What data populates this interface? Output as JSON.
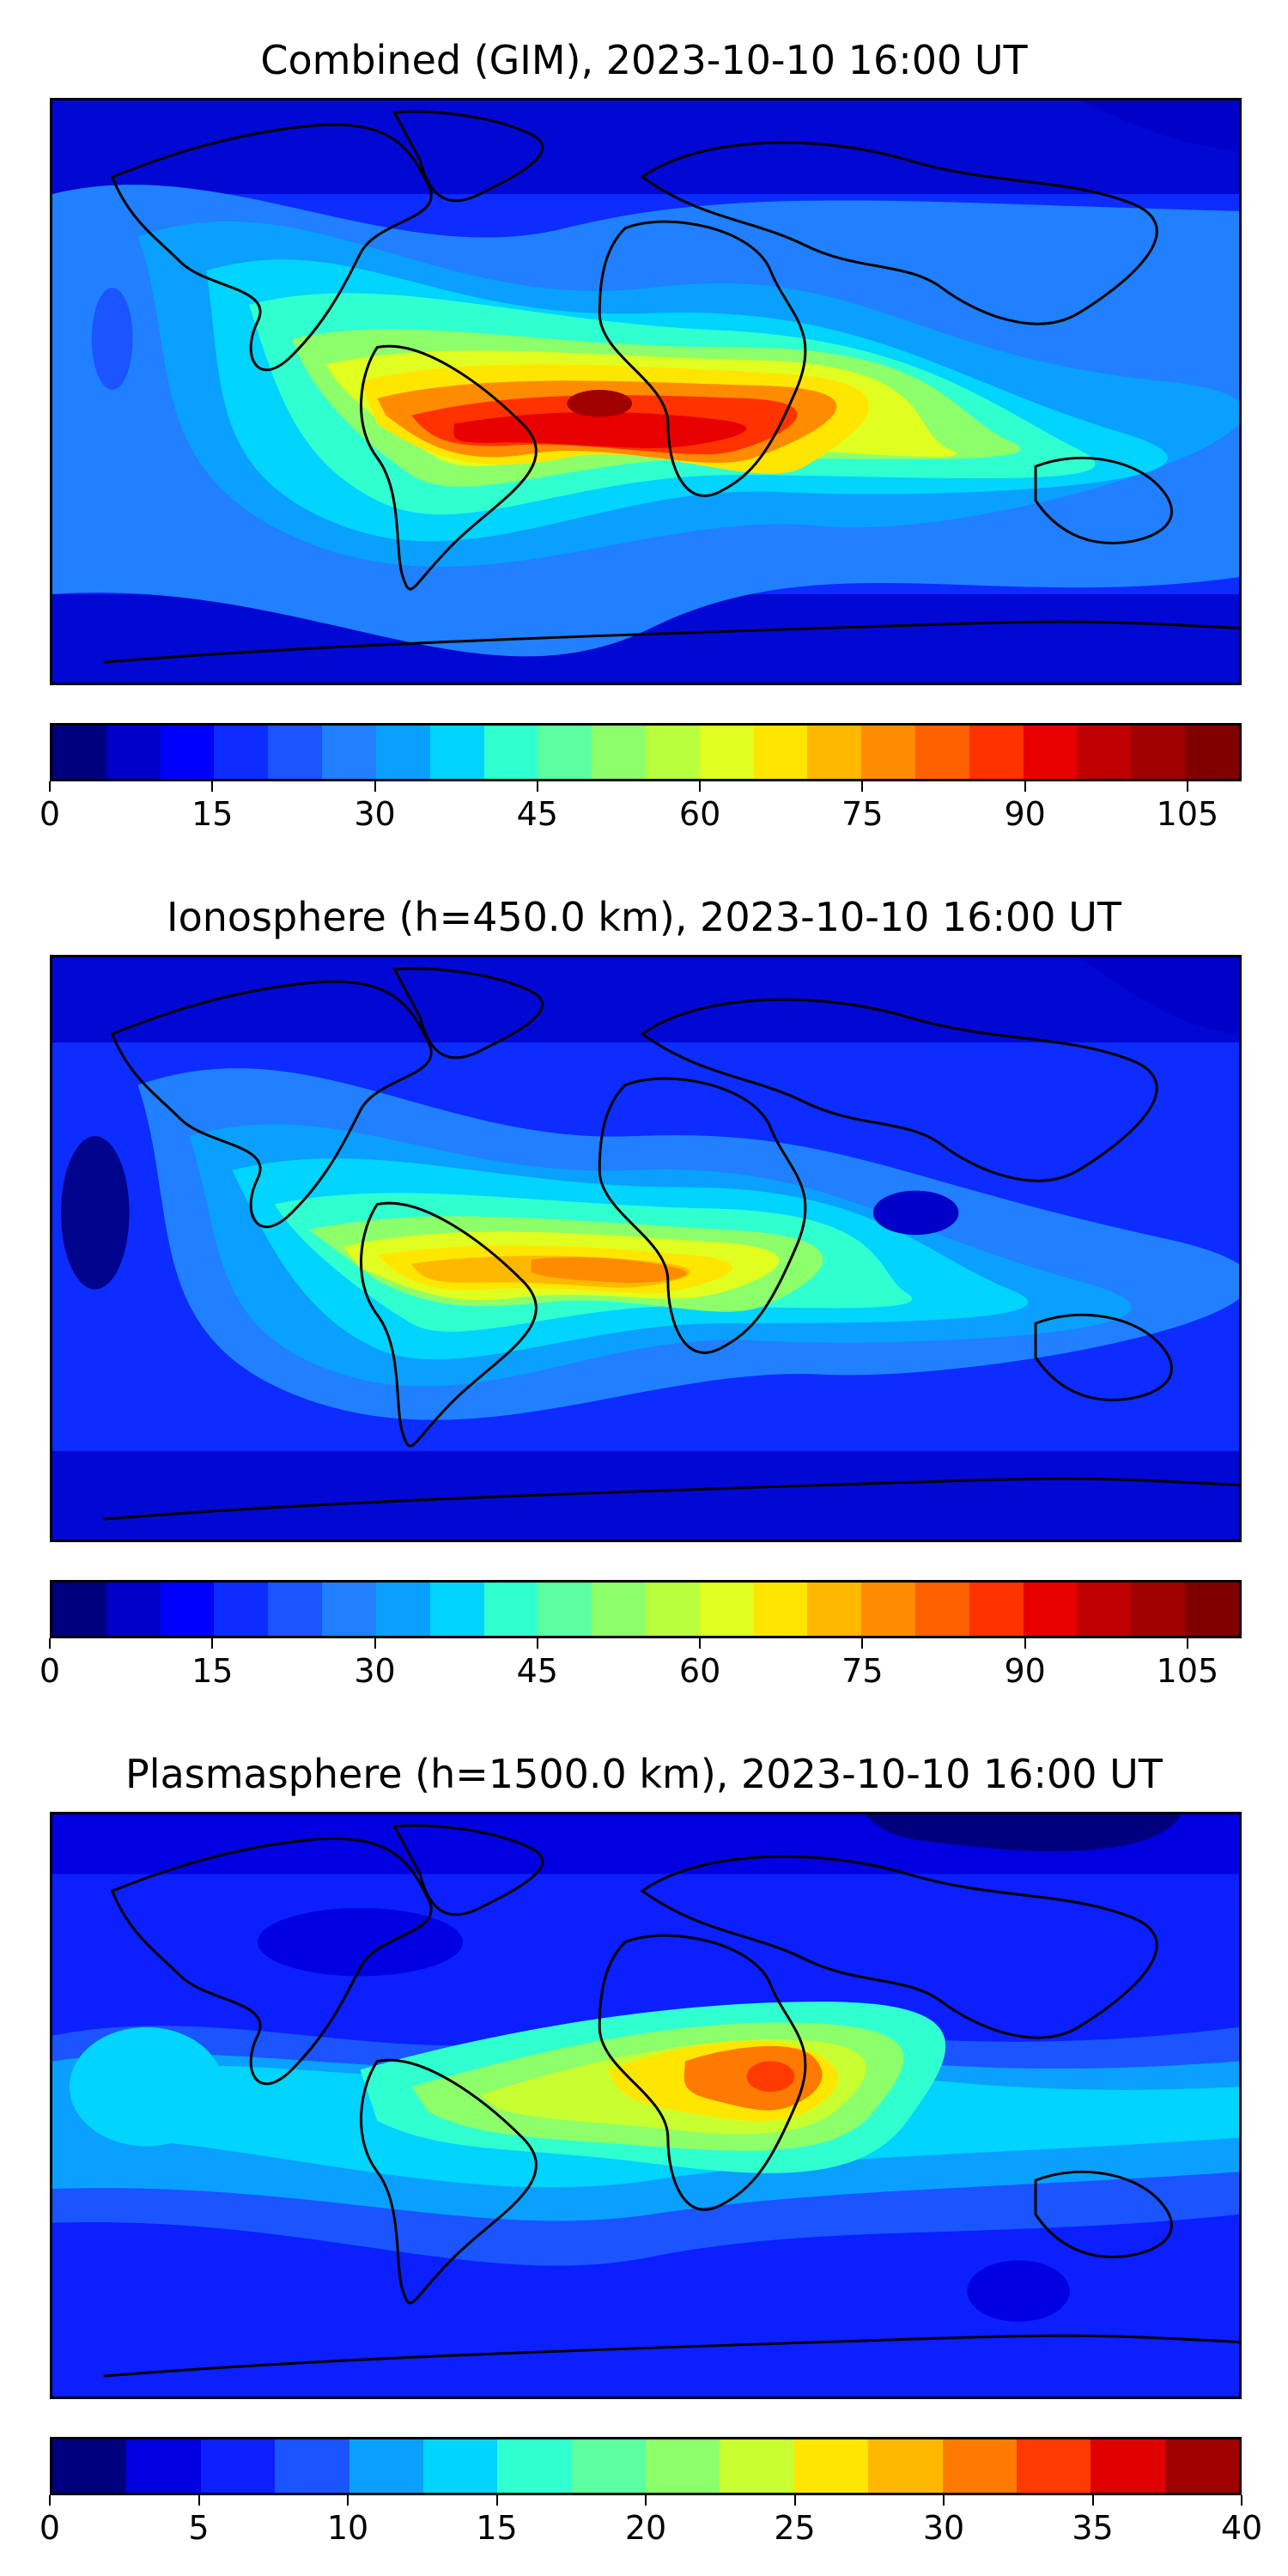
{
  "panels": [
    {
      "title": "Combined (GIM), 2023-10-10 16:00 UT",
      "colorbar": {
        "min": 0,
        "max": 110,
        "levels": 22,
        "tick_labels": [
          "0",
          "15",
          "30",
          "45",
          "60",
          "75",
          "90",
          "105"
        ],
        "tick_values": [
          0,
          15,
          30,
          45,
          60,
          75,
          90,
          105
        ]
      },
      "map_features": {
        "max_region": "equatorial South America and tropical Atlantic",
        "secondary_region": "central Africa / Indian Ocean"
      }
    },
    {
      "title": "Ionosphere  (h=450.0 km), 2023-10-10 16:00 UT",
      "colorbar": {
        "min": 0,
        "max": 110,
        "levels": 22,
        "tick_labels": [
          "0",
          "15",
          "30",
          "45",
          "60",
          "75",
          "90",
          "105"
        ],
        "tick_values": [
          0,
          15,
          30,
          45,
          60,
          75,
          90,
          105
        ]
      },
      "map_features": {
        "max_region": "South America and tropical Atlantic",
        "min_region": "Pacific Ocean and high latitudes"
      }
    },
    {
      "title": "Plasmasphere (h=1500.0 km), 2023-10-10 16:00 UT",
      "colorbar": {
        "min": 0,
        "max": 40,
        "levels": 16,
        "tick_labels": [
          "0",
          "5",
          "10",
          "15",
          "20",
          "25",
          "30",
          "35",
          "40"
        ],
        "tick_values": [
          0,
          5,
          10,
          15,
          20,
          25,
          30,
          35,
          40
        ]
      },
      "map_features": {
        "max_region": "East Africa / Horn of Africa",
        "min_region": "North America and southern Indian Ocean"
      }
    }
  ],
  "colormap": [
    "#00007f",
    "#0000c8",
    "#0000ff",
    "#0d2cff",
    "#1a55ff",
    "#2080ff",
    "#0aa0ff",
    "#00d4ff",
    "#30ffd0",
    "#5cffa0",
    "#8cff6a",
    "#b8ff3e",
    "#e0ff20",
    "#ffe600",
    "#ffb800",
    "#ff8c00",
    "#ff6000",
    "#ff3200",
    "#e80000",
    "#c00000",
    "#a00000",
    "#800000"
  ],
  "colormap_plasma": [
    "#00007f",
    "#0000e0",
    "#0b1fff",
    "#1a55ff",
    "#0aa0ff",
    "#00d4ff",
    "#30ffd0",
    "#5cffa0",
    "#8cff6a",
    "#c8ff30",
    "#ffe600",
    "#ffb800",
    "#ff7a00",
    "#ff3a00",
    "#e00000",
    "#a00000"
  ]
}
